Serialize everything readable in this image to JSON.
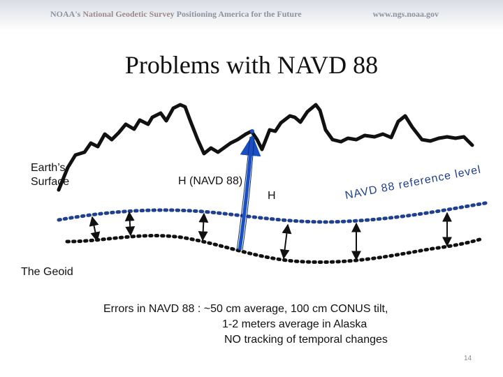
{
  "header": {
    "org": "NOAA's",
    "agency": "National Geodetic Survey",
    "tagline": "Positioning America for the Future",
    "url": "www.ngs.noaa.gov"
  },
  "title": "Problems with NAVD 88",
  "labels": {
    "earth_surface": "Earth’s\nSurface",
    "navd_h": "H (NAVD 88)",
    "h": "H",
    "reference_level": "NAVD 88 reference level",
    "geoid": "The Geoid"
  },
  "errors": {
    "prefix": "Errors in NAVD 88 :",
    "line1": "~50 cm average, 100 cm CONUS tilt,",
    "line2": "1-2 meters average in Alaska",
    "line3": "NO tracking of temporal changes"
  },
  "slide_number": "14",
  "colors": {
    "reference_line": "#1f3f8f",
    "geoid_line": "#111111",
    "terrain": "#111111",
    "h_arrow": "#1a4fc4"
  }
}
